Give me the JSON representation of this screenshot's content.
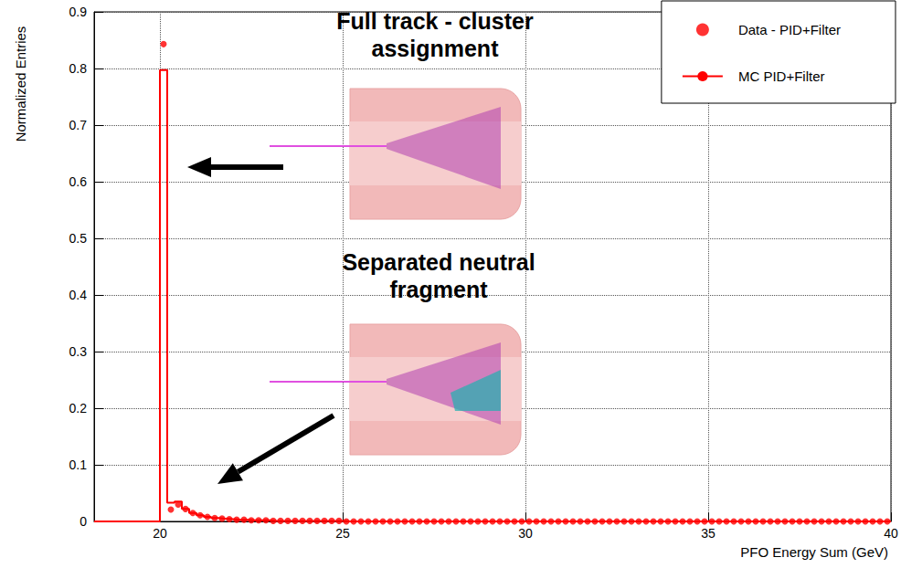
{
  "chart_data": {
    "type": "histogram",
    "x_label": "PFO Energy Sum (GeV)",
    "y_label": "Normalized Entries",
    "xlim": [
      18.2,
      40
    ],
    "ylim": [
      0,
      0.9
    ],
    "xticks": [
      20,
      25,
      30,
      35,
      40
    ],
    "yticks": [
      0,
      0.1,
      0.2,
      0.3,
      0.4,
      0.5,
      0.6,
      0.7,
      0.8,
      0.9
    ],
    "grid": true,
    "legend": "top-right",
    "series": [
      {
        "name": "Data - PID+Filter",
        "type": "scatter",
        "color": "#ff0000",
        "marker": "circle",
        "x": [
          20.1,
          20.3,
          20.5,
          20.7,
          20.9,
          21.1,
          21.3,
          21.5,
          21.7,
          21.9,
          22.1,
          22.3,
          22.5,
          22.7,
          22.9,
          23.1,
          23.3,
          23.5,
          23.7,
          23.9,
          24.1,
          24.3,
          24.5,
          24.7,
          24.9,
          25.1,
          25.3,
          25.5,
          25.7,
          25.9,
          26.1,
          26.3,
          26.5,
          26.7,
          26.9,
          27.1,
          27.3,
          27.5,
          27.7,
          27.9,
          28.1,
          28.3,
          28.5,
          28.7,
          28.9,
          29.1,
          29.3,
          29.5,
          29.7,
          29.9,
          30.1,
          30.3,
          30.5,
          30.7,
          30.9,
          31.1,
          31.3,
          31.5,
          31.7,
          31.9,
          32.1,
          32.3,
          32.5,
          32.7,
          32.9,
          33.1,
          33.3,
          33.5,
          33.7,
          33.9,
          34.1,
          34.3,
          34.5,
          34.7,
          34.9,
          35.1,
          35.3,
          35.5,
          35.7,
          35.9,
          36.1,
          36.3,
          36.5,
          36.7,
          36.9,
          37.1,
          37.3,
          37.5,
          37.7,
          37.9,
          38.1,
          38.3,
          38.5,
          38.7,
          38.9,
          39.1,
          39.3,
          39.5,
          39.7,
          39.9
        ],
        "values": [
          0.843,
          0.021,
          0.03,
          0.022,
          0.015,
          0.011,
          0.008,
          0.006,
          0.005,
          0.004,
          0.003,
          0.003,
          0.002,
          0.002,
          0.002,
          0.001,
          0.001,
          0.001,
          0.001,
          0.001,
          0.001,
          0.001,
          0.001,
          0.001,
          0.001,
          0,
          0,
          0,
          0,
          0,
          0,
          0,
          0,
          0,
          0,
          0,
          0,
          0,
          0,
          0,
          0,
          0,
          0,
          0,
          0,
          0,
          0,
          0,
          0,
          0,
          0,
          0,
          0,
          0,
          0,
          0,
          0,
          0,
          0,
          0,
          0,
          0,
          0,
          0,
          0,
          0,
          0,
          0,
          0,
          0,
          0,
          0,
          0,
          0,
          0,
          0,
          0,
          0,
          0,
          0,
          0,
          0,
          0,
          0,
          0,
          0,
          0,
          0,
          0,
          0,
          0,
          0,
          0,
          0,
          0,
          0,
          0,
          0,
          0,
          0
        ]
      },
      {
        "name": "MC PID+Filter",
        "type": "histogram",
        "color": "#ff0000",
        "line_style": "solid",
        "bins": [
          18.2,
          20,
          20.2,
          20.4,
          20.6,
          20.8,
          21,
          21.2,
          21.4,
          21.6,
          21.8,
          22,
          22.2,
          22.4,
          22.6,
          22.8,
          23,
          23.2,
          23.4,
          23.6,
          23.8,
          24,
          24.2,
          24.4,
          24.6,
          24.8,
          25,
          25.2,
          25.4,
          25.6,
          25.8,
          26,
          26.2,
          26.4,
          26.6,
          26.8,
          27,
          27.2,
          27.4,
          27.6,
          27.8,
          28,
          28.2,
          28.4,
          28.6,
          28.8,
          29,
          29.2,
          29.4,
          29.6,
          29.8,
          30,
          30.2,
          30.4,
          30.6,
          30.8,
          31,
          31.2,
          31.4,
          31.6,
          31.8,
          32,
          32.2,
          32.4,
          32.6,
          32.8,
          33,
          33.2,
          33.4,
          33.6,
          33.8,
          34,
          34.2,
          34.4,
          34.6,
          34.8,
          35,
          35.2,
          35.4,
          35.6,
          35.8,
          36,
          36.2,
          36.4,
          36.6,
          36.8,
          37,
          37.2,
          37.4,
          37.6,
          37.8,
          38,
          38.2,
          38.4,
          38.6,
          38.8,
          39,
          39.2,
          39.4,
          39.6,
          39.8,
          40
        ],
        "values": [
          0,
          0.797,
          0.033,
          0.035,
          0.022,
          0.015,
          0.011,
          0.008,
          0.006,
          0.005,
          0.004,
          0.003,
          0.003,
          0.002,
          0.002,
          0.002,
          0.001,
          0.001,
          0.001,
          0.001,
          0.001,
          0.001,
          0.001,
          0.001,
          0.001,
          0.001,
          0,
          0,
          0,
          0,
          0,
          0,
          0,
          0,
          0,
          0,
          0,
          0,
          0,
          0,
          0,
          0,
          0,
          0,
          0,
          0,
          0,
          0,
          0,
          0,
          0,
          0,
          0,
          0,
          0,
          0,
          0,
          0,
          0,
          0,
          0,
          0,
          0,
          0,
          0,
          0,
          0,
          0,
          0,
          0,
          0,
          0,
          0,
          0,
          0,
          0,
          0,
          0,
          0,
          0,
          0,
          0,
          0,
          0,
          0,
          0,
          0,
          0,
          0,
          0,
          0,
          0,
          0,
          0,
          0,
          0,
          0,
          0,
          0,
          0,
          0,
          0
        ]
      }
    ],
    "annotations": [
      {
        "text": "Full track - cluster\nassignment"
      },
      {
        "text": "Separated neutral\nfragment"
      }
    ]
  }
}
